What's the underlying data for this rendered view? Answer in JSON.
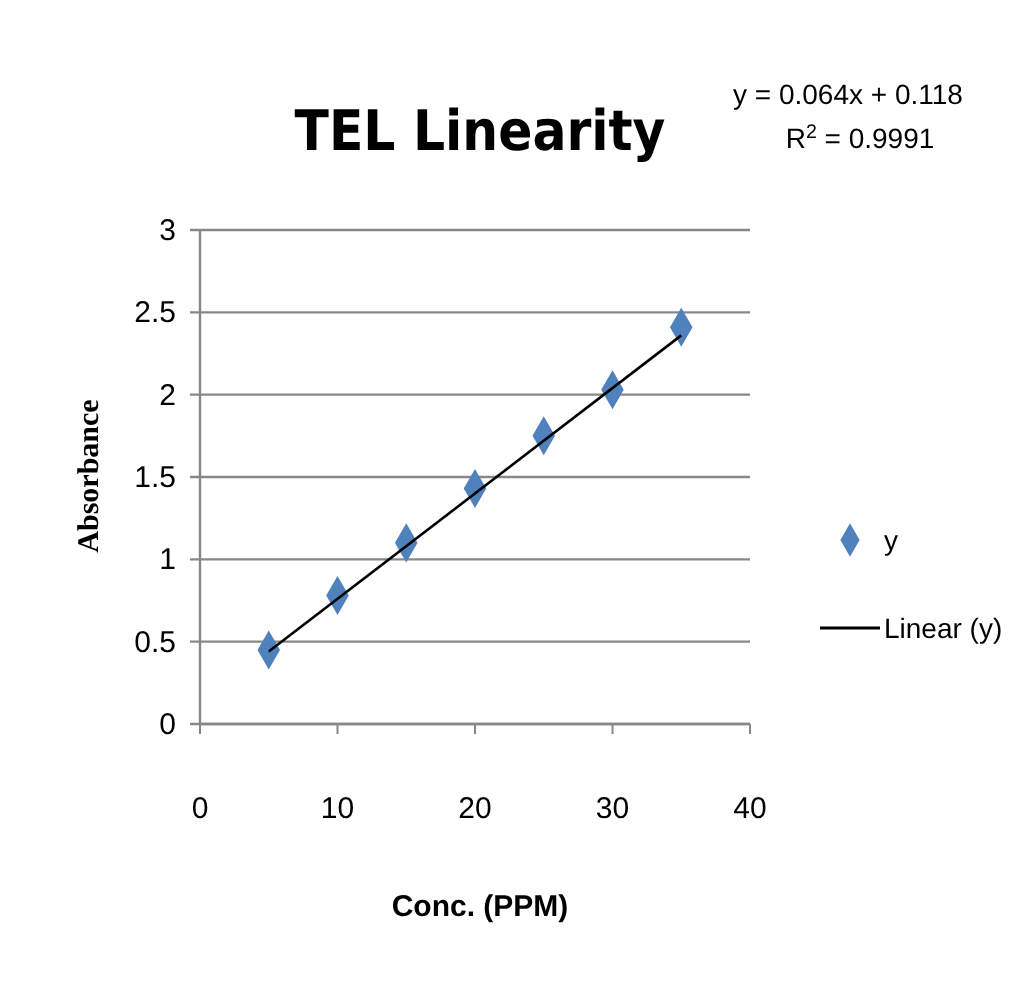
{
  "chart_data": {
    "type": "scatter",
    "title": "TEL Linearity",
    "xlabel": "Conc. (PPM)",
    "ylabel": "Absorbance",
    "annotations": [
      "y = 0.064x + 0.118",
      "R$^{2}$ = 0.9991"
    ],
    "x": [
      5,
      10,
      15,
      20,
      25,
      30,
      35
    ],
    "series": [
      {
        "name": "y",
        "color": "#4f81bd",
        "values": [
          0.45,
          0.78,
          1.1,
          1.43,
          1.75,
          2.03,
          2.41
        ],
        "marker": "diamond"
      },
      {
        "name": "Linear (y)",
        "type": "line",
        "color": "#000000",
        "x": [
          5,
          35
        ],
        "values": [
          0.44,
          2.36
        ],
        "marker": "none"
      }
    ],
    "xlim": [
      0,
      40
    ],
    "xticks": [
      0,
      10,
      20,
      30,
      40
    ],
    "ylim": [
      0,
      3
    ],
    "yticks": [
      0,
      0.5,
      1,
      1.5,
      2,
      2.5,
      3
    ],
    "grid": "y",
    "legend": "right"
  }
}
